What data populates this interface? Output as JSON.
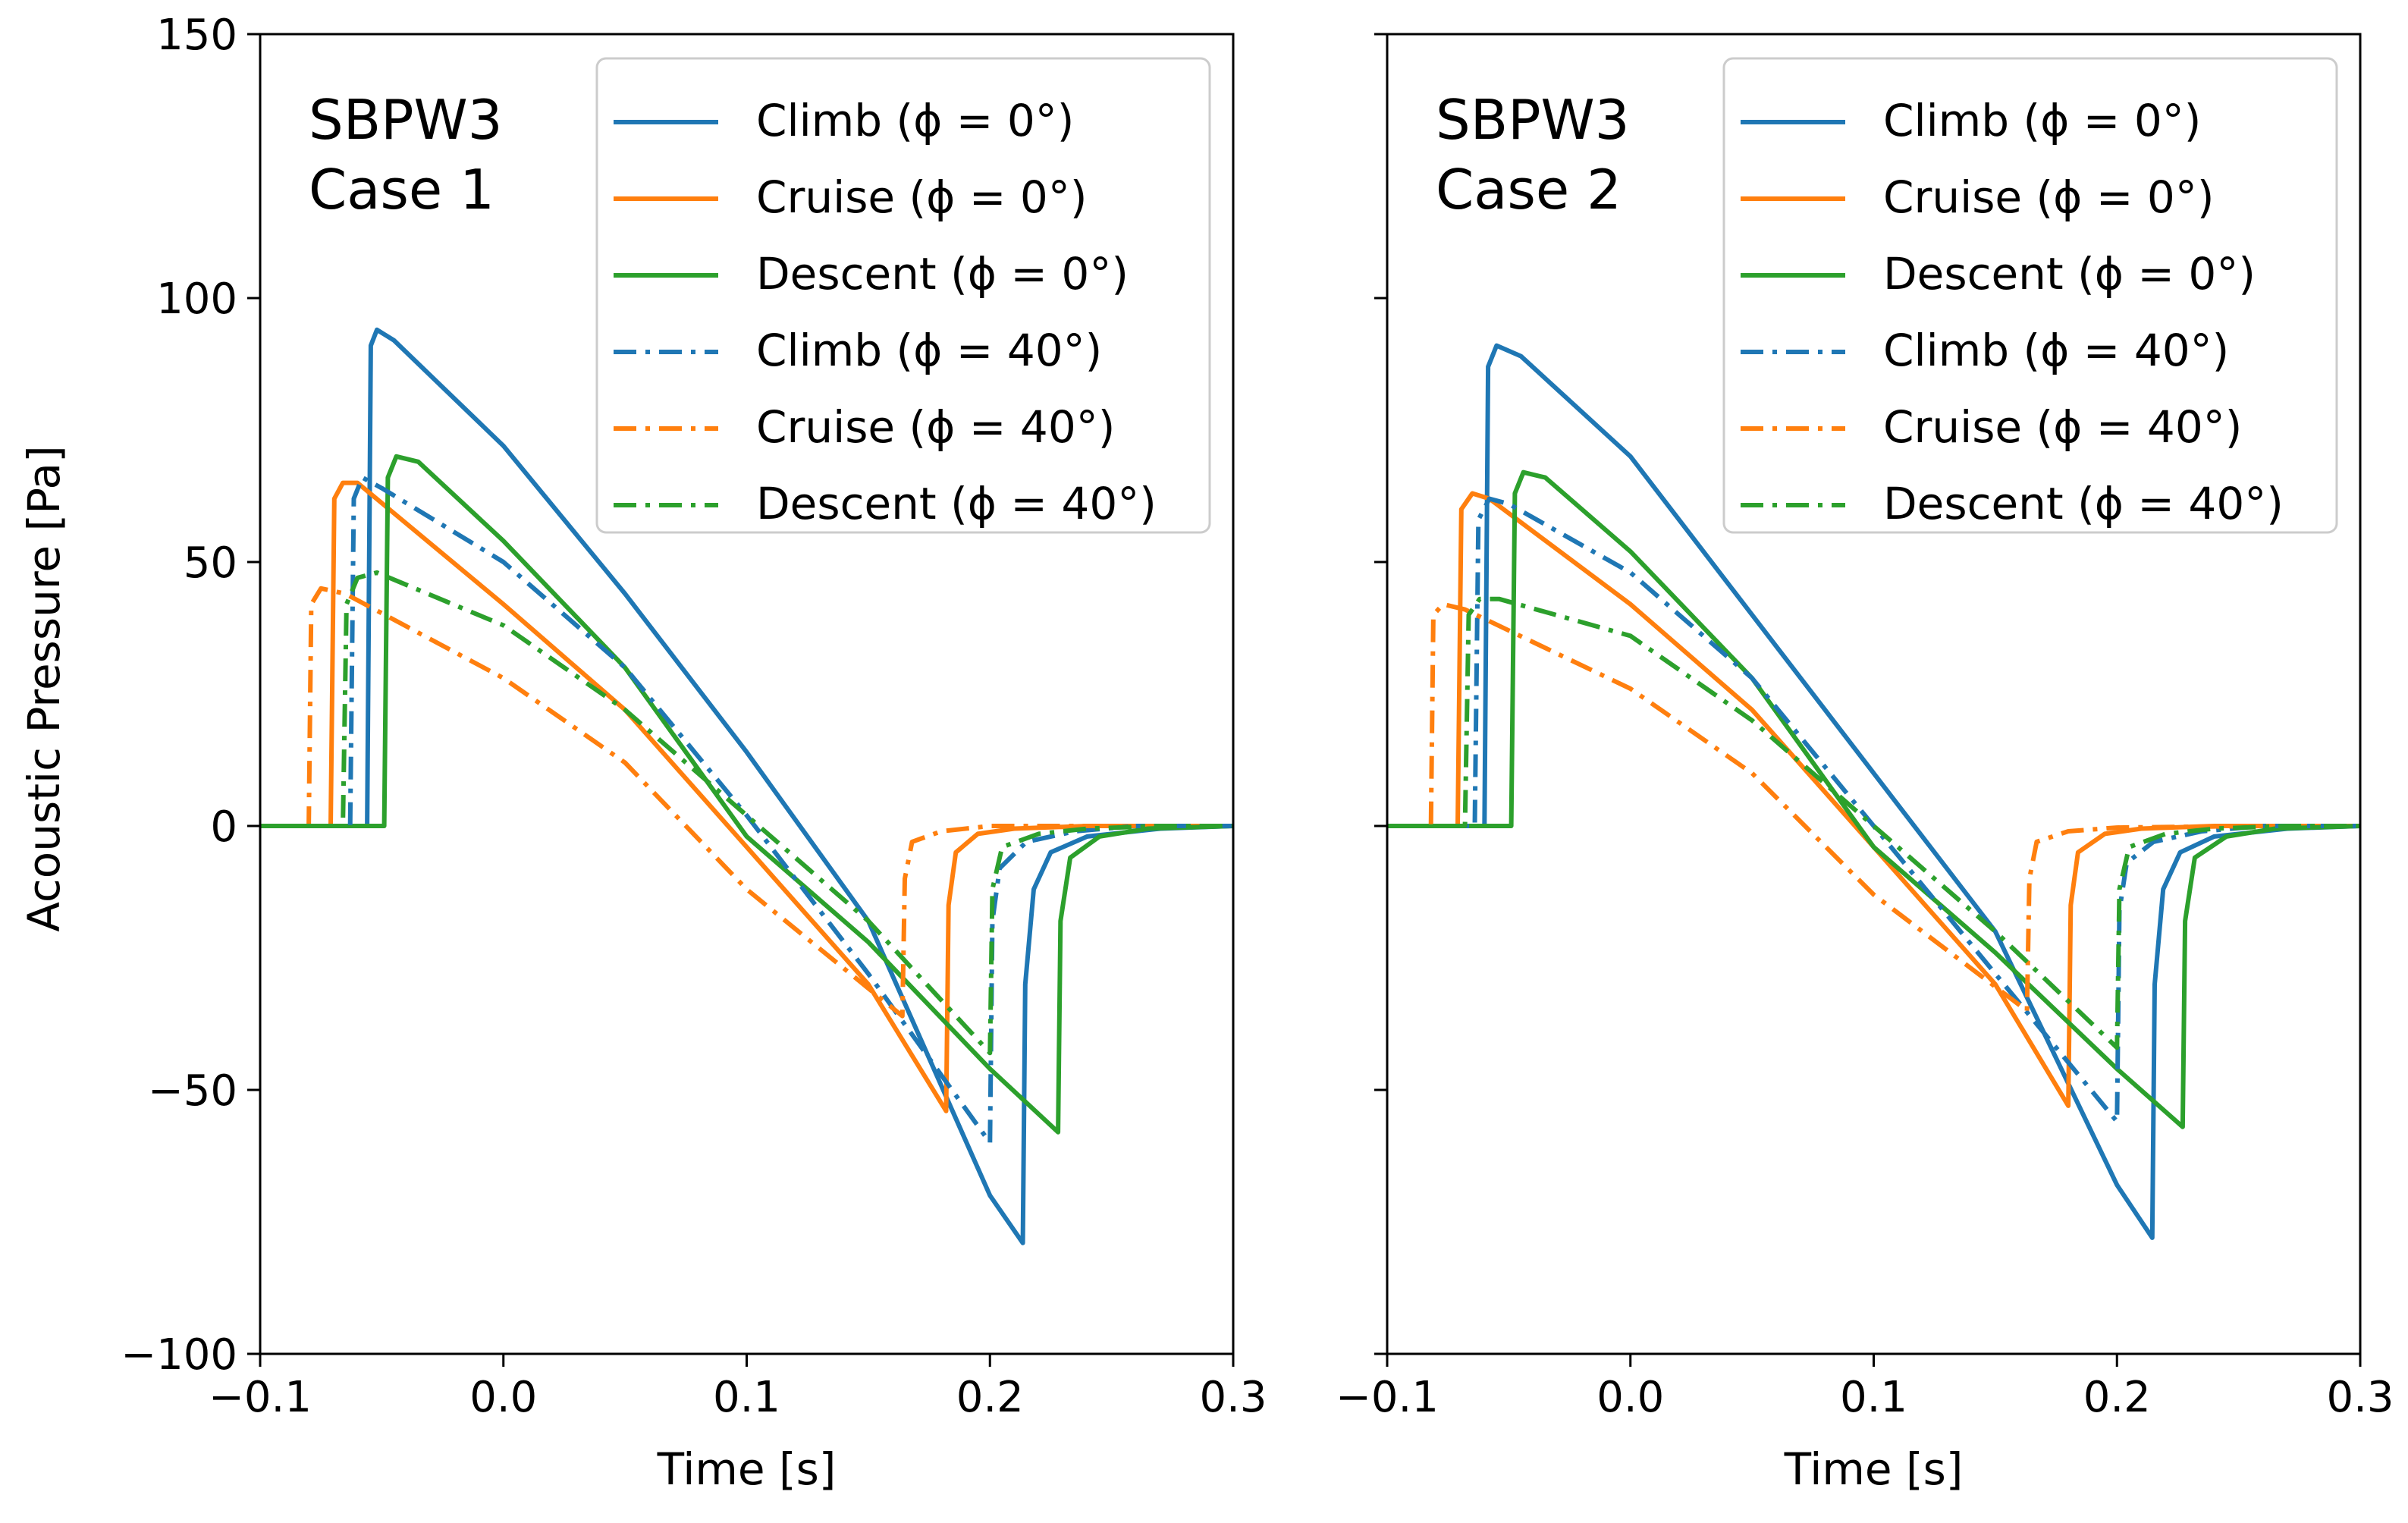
{
  "figure": {
    "ylabel": "Acoustic Pressure [Pa]"
  },
  "colors": {
    "climb": "#1f77b4",
    "cruise": "#ff7f0e",
    "descent": "#2ca02c"
  },
  "chart_data": [
    {
      "type": "line",
      "annotation": [
        "SBPW3",
        "Case 1"
      ],
      "xlabel": "Time [s]",
      "ylabel": "Acoustic Pressure [Pa]",
      "xlim": [
        -0.1,
        0.3
      ],
      "ylim": [
        -100,
        150
      ],
      "xticks": [
        -0.1,
        0.0,
        0.1,
        0.2,
        0.3
      ],
      "xtick_labels": [
        "−0.1",
        "0.0",
        "0.1",
        "0.2",
        "0.3"
      ],
      "yticks": [
        -100,
        -50,
        0,
        50,
        100,
        150
      ],
      "ytick_labels": [
        "−100",
        "−50",
        "0",
        "50",
        "100",
        "150"
      ],
      "grid": false,
      "legend_position": "top-right",
      "series": [
        {
          "name": "Climb (ϕ = 0°)",
          "color_key": "climb",
          "style": "solid",
          "points": [
            [
              -0.1,
              0
            ],
            [
              -0.056,
              0
            ],
            [
              -0.0545,
              91
            ],
            [
              -0.052,
              94
            ],
            [
              -0.045,
              92
            ],
            [
              0.0,
              72
            ],
            [
              0.05,
              44
            ],
            [
              0.1,
              14
            ],
            [
              0.15,
              -18
            ],
            [
              0.2,
              -70
            ],
            [
              0.2135,
              -79
            ],
            [
              0.2145,
              -30
            ],
            [
              0.218,
              -12
            ],
            [
              0.225,
              -5
            ],
            [
              0.24,
              -2
            ],
            [
              0.27,
              -0.5
            ],
            [
              0.3,
              0
            ]
          ]
        },
        {
          "name": "Cruise (ϕ = 0°)",
          "color_key": "cruise",
          "style": "solid",
          "points": [
            [
              -0.1,
              0
            ],
            [
              -0.071,
              0
            ],
            [
              -0.0695,
              62
            ],
            [
              -0.066,
              65
            ],
            [
              -0.06,
              65
            ],
            [
              0.0,
              42
            ],
            [
              0.05,
              22
            ],
            [
              0.1,
              -4
            ],
            [
              0.15,
              -30
            ],
            [
              0.182,
              -54
            ],
            [
              0.183,
              -15
            ],
            [
              0.186,
              -5
            ],
            [
              0.195,
              -1.5
            ],
            [
              0.21,
              -0.5
            ],
            [
              0.24,
              0
            ],
            [
              0.3,
              0
            ]
          ]
        },
        {
          "name": "Descent (ϕ = 0°)",
          "color_key": "descent",
          "style": "solid",
          "points": [
            [
              -0.1,
              0
            ],
            [
              -0.049,
              0
            ],
            [
              -0.0475,
              66
            ],
            [
              -0.044,
              70
            ],
            [
              -0.035,
              69
            ],
            [
              0.0,
              54
            ],
            [
              0.05,
              30
            ],
            [
              0.1,
              -2
            ],
            [
              0.15,
              -22
            ],
            [
              0.2,
              -46
            ],
            [
              0.228,
              -58
            ],
            [
              0.229,
              -18
            ],
            [
              0.233,
              -6
            ],
            [
              0.245,
              -2
            ],
            [
              0.265,
              -0.5
            ],
            [
              0.3,
              0
            ]
          ]
        },
        {
          "name": "Climb (ϕ = 40°)",
          "color_key": "climb",
          "style": "dashdot",
          "points": [
            [
              -0.1,
              0
            ],
            [
              -0.063,
              0
            ],
            [
              -0.0615,
              62
            ],
            [
              -0.058,
              66
            ],
            [
              -0.05,
              64
            ],
            [
              0.0,
              50
            ],
            [
              0.05,
              30
            ],
            [
              0.1,
              2
            ],
            [
              0.15,
              -28
            ],
            [
              0.2,
              -60
            ],
            [
              0.201,
              -18
            ],
            [
              0.204,
              -8
            ],
            [
              0.215,
              -3
            ],
            [
              0.235,
              -1
            ],
            [
              0.26,
              0
            ],
            [
              0.3,
              0
            ]
          ]
        },
        {
          "name": "Cruise (ϕ = 40°)",
          "color_key": "cruise",
          "style": "dashdot",
          "points": [
            [
              -0.1,
              0
            ],
            [
              -0.08,
              0
            ],
            [
              -0.079,
              42
            ],
            [
              -0.075,
              45
            ],
            [
              -0.065,
              44
            ],
            [
              0.0,
              28
            ],
            [
              0.05,
              12
            ],
            [
              0.1,
              -12
            ],
            [
              0.164,
              -36
            ],
            [
              0.165,
              -10
            ],
            [
              0.168,
              -3
            ],
            [
              0.18,
              -1
            ],
            [
              0.2,
              0
            ],
            [
              0.26,
              0
            ]
          ]
        },
        {
          "name": "Descent (ϕ = 40°)",
          "color_key": "descent",
          "style": "dashdot",
          "points": [
            [
              -0.1,
              0
            ],
            [
              -0.066,
              0
            ],
            [
              -0.0645,
              42
            ],
            [
              -0.06,
              47
            ],
            [
              -0.052,
              48
            ],
            [
              0.0,
              38
            ],
            [
              0.05,
              22
            ],
            [
              0.1,
              2
            ],
            [
              0.15,
              -18
            ],
            [
              0.2,
              -43
            ],
            [
              0.201,
              -12
            ],
            [
              0.205,
              -4
            ],
            [
              0.22,
              -1.5
            ],
            [
              0.24,
              -0.5
            ],
            [
              0.27,
              0
            ],
            [
              0.3,
              0
            ]
          ]
        }
      ]
    },
    {
      "type": "line",
      "annotation": [
        "SBPW3",
        "Case 2"
      ],
      "xlabel": "Time [s]",
      "xlim": [
        -0.1,
        0.3
      ],
      "ylim": [
        -100,
        150
      ],
      "xticks": [
        -0.1,
        0.0,
        0.1,
        0.2,
        0.3
      ],
      "xtick_labels": [
        "−0.1",
        "0.0",
        "0.1",
        "0.2",
        "0.3"
      ],
      "yticks": [
        -100,
        -50,
        0,
        50,
        100,
        150
      ],
      "grid": false,
      "legend_position": "top-right",
      "series": [
        {
          "name": "Climb (ϕ = 0°)",
          "color_key": "climb",
          "style": "solid",
          "points": [
            [
              -0.1,
              0
            ],
            [
              -0.06,
              0
            ],
            [
              -0.0585,
              87
            ],
            [
              -0.055,
              91
            ],
            [
              -0.045,
              89
            ],
            [
              0.0,
              70
            ],
            [
              0.05,
              40
            ],
            [
              0.1,
              10
            ],
            [
              0.15,
              -20
            ],
            [
              0.2,
              -68
            ],
            [
              0.2145,
              -78
            ],
            [
              0.2155,
              -30
            ],
            [
              0.219,
              -12
            ],
            [
              0.226,
              -5
            ],
            [
              0.24,
              -2
            ],
            [
              0.27,
              -0.5
            ],
            [
              0.3,
              0
            ]
          ]
        },
        {
          "name": "Cruise (ϕ = 0°)",
          "color_key": "cruise",
          "style": "solid",
          "points": [
            [
              -0.1,
              0
            ],
            [
              -0.071,
              0
            ],
            [
              -0.0695,
              60
            ],
            [
              -0.065,
              63
            ],
            [
              -0.058,
              62
            ],
            [
              0.0,
              42
            ],
            [
              0.05,
              22
            ],
            [
              0.1,
              -4
            ],
            [
              0.15,
              -30
            ],
            [
              0.18,
              -53
            ],
            [
              0.181,
              -15
            ],
            [
              0.184,
              -5
            ],
            [
              0.195,
              -1.5
            ],
            [
              0.21,
              -0.5
            ],
            [
              0.24,
              0
            ],
            [
              0.3,
              0
            ]
          ]
        },
        {
          "name": "Descent (ϕ = 0°)",
          "color_key": "descent",
          "style": "solid",
          "points": [
            [
              -0.1,
              0
            ],
            [
              -0.049,
              0
            ],
            [
              -0.0475,
              63
            ],
            [
              -0.044,
              67
            ],
            [
              -0.035,
              66
            ],
            [
              0.0,
              52
            ],
            [
              0.05,
              28
            ],
            [
              0.1,
              -4
            ],
            [
              0.15,
              -24
            ],
            [
              0.2,
              -46
            ],
            [
              0.227,
              -57
            ],
            [
              0.228,
              -18
            ],
            [
              0.232,
              -6
            ],
            [
              0.245,
              -2
            ],
            [
              0.265,
              -0.5
            ],
            [
              0.3,
              0
            ]
          ]
        },
        {
          "name": "Climb (ϕ = 40°)",
          "color_key": "climb",
          "style": "dashdot",
          "points": [
            [
              -0.1,
              0
            ],
            [
              -0.064,
              0
            ],
            [
              -0.0625,
              58
            ],
            [
              -0.058,
              62
            ],
            [
              -0.05,
              61
            ],
            [
              0.0,
              48
            ],
            [
              0.05,
              28
            ],
            [
              0.1,
              0
            ],
            [
              0.15,
              -28
            ],
            [
              0.2,
              -56
            ],
            [
              0.201,
              -16
            ],
            [
              0.204,
              -7
            ],
            [
              0.215,
              -3
            ],
            [
              0.235,
              -1
            ],
            [
              0.26,
              0
            ],
            [
              0.3,
              0
            ]
          ]
        },
        {
          "name": "Cruise (ϕ = 40°)",
          "color_key": "cruise",
          "style": "dashdot",
          "points": [
            [
              -0.1,
              0
            ],
            [
              -0.082,
              0
            ],
            [
              -0.081,
              40
            ],
            [
              -0.077,
              42
            ],
            [
              -0.068,
              41
            ],
            [
              0.0,
              26
            ],
            [
              0.05,
              10
            ],
            [
              0.1,
              -13
            ],
            [
              0.163,
              -35
            ],
            [
              0.164,
              -10
            ],
            [
              0.167,
              -3
            ],
            [
              0.18,
              -1
            ],
            [
              0.2,
              -0.3
            ],
            [
              0.26,
              0
            ]
          ]
        },
        {
          "name": "Descent (ϕ = 40°)",
          "color_key": "descent",
          "style": "dashdot",
          "points": [
            [
              -0.1,
              0
            ],
            [
              -0.068,
              0
            ],
            [
              -0.0665,
              40
            ],
            [
              -0.062,
              43
            ],
            [
              -0.054,
              43
            ],
            [
              0.0,
              36
            ],
            [
              0.05,
              20
            ],
            [
              0.1,
              0
            ],
            [
              0.15,
              -20
            ],
            [
              0.2,
              -42
            ],
            [
              0.201,
              -12
            ],
            [
              0.205,
              -4
            ],
            [
              0.22,
              -1.5
            ],
            [
              0.24,
              -0.5
            ],
            [
              0.27,
              0
            ],
            [
              0.3,
              0
            ]
          ]
        }
      ]
    }
  ]
}
